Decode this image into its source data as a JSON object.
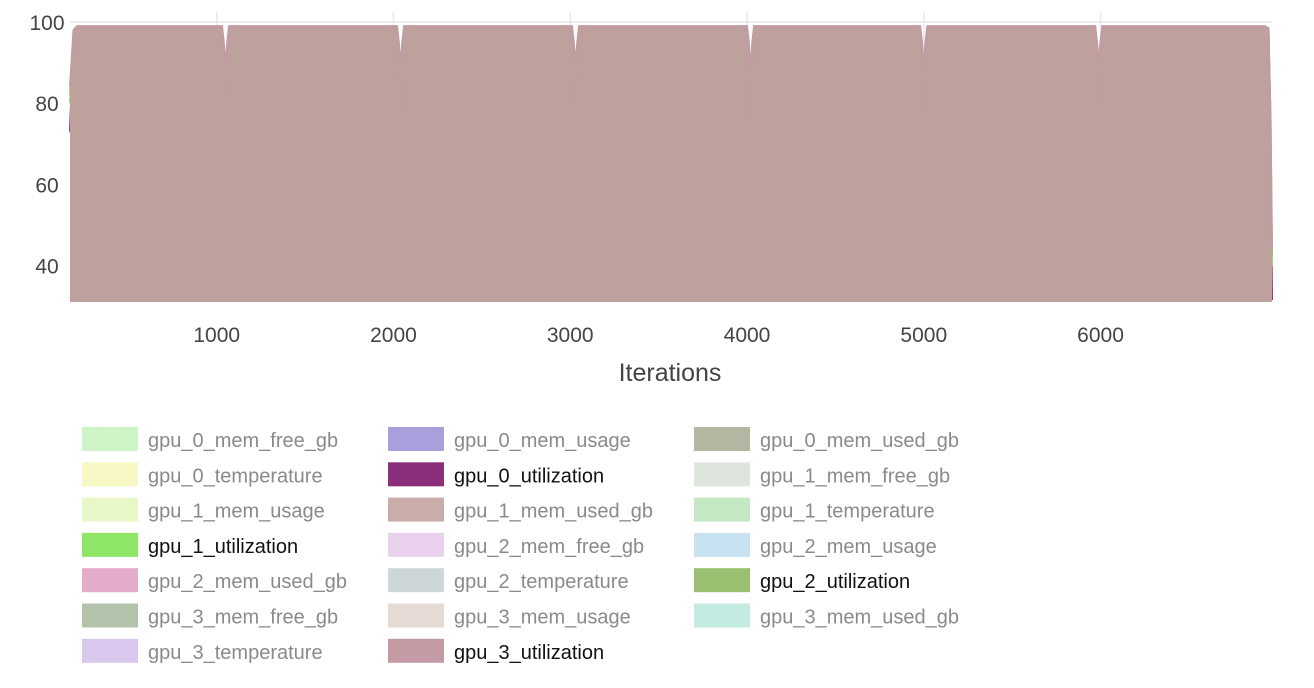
{
  "chart_data": {
    "type": "area",
    "title": "",
    "xlabel": "Iterations",
    "ylabel": "",
    "xlim": [
      170,
      6970
    ],
    "ylim": [
      31,
      100.5
    ],
    "x_ticks": [
      1000,
      2000,
      3000,
      4000,
      5000,
      6000
    ],
    "y_ticks": [
      40,
      60,
      80,
      100
    ],
    "grid": true,
    "legend_position": "bottom",
    "legend_columns": 3,
    "dip_iterations": [
      1050,
      2040,
      3030,
      4020,
      5000,
      5990
    ],
    "series": [
      {
        "name": "gpu_0_mem_free_gb",
        "color": "#bdf0b5",
        "visible": false
      },
      {
        "name": "gpu_0_mem_usage",
        "color": "#8a80d0",
        "visible": false
      },
      {
        "name": "gpu_0_mem_used_gb",
        "color": "#9a9e80",
        "visible": false
      },
      {
        "name": "gpu_0_temperature",
        "color": "#f5f5b0",
        "visible": false
      },
      {
        "name": "gpu_0_utilization",
        "color": "#8b2f7d",
        "visible": true,
        "x": [
          170,
          190,
          210,
          1030,
          1040,
          1050,
          1060,
          1070,
          2020,
          2030,
          2040,
          2050,
          2060,
          3010,
          3020,
          3030,
          3040,
          3050,
          4000,
          4010,
          4020,
          4030,
          4040,
          4980,
          4990,
          5000,
          5010,
          5020,
          5970,
          5980,
          5990,
          6000,
          6010,
          6930,
          6950,
          6962,
          6970
        ],
        "y": [
          73,
          97,
          98.5,
          98.5,
          92,
          81,
          92,
          98.5,
          98.5,
          90,
          78,
          90,
          98.5,
          98.5,
          91,
          79,
          91,
          98.5,
          98.5,
          88,
          75.5,
          88,
          98.5,
          98.5,
          90,
          78.5,
          90,
          98.5,
          98.5,
          91,
          79,
          91,
          98.5,
          98.5,
          98,
          65,
          31.5
        ]
      },
      {
        "name": "gpu_1_mem_free_gb",
        "color": "#d3dcd0",
        "visible": false
      },
      {
        "name": "gpu_1_mem_usage",
        "color": "#e0f5b5",
        "visible": false
      },
      {
        "name": "gpu_1_mem_used_gb",
        "color": "#b8908f",
        "visible": false
      },
      {
        "name": "gpu_1_temperature",
        "color": "#b0e0b0",
        "visible": false
      },
      {
        "name": "gpu_1_utilization",
        "color": "#8fe566",
        "visible": true,
        "x": [
          170,
          190,
          210,
          1030,
          1040,
          1050,
          1060,
          1070,
          2020,
          2030,
          2040,
          2050,
          2060,
          3010,
          3020,
          3030,
          3040,
          3050,
          4000,
          4010,
          4020,
          4030,
          4040,
          4980,
          4990,
          5000,
          5010,
          5020,
          5970,
          5980,
          5990,
          6000,
          6010,
          6930,
          6950,
          6962,
          6970
        ],
        "y": [
          80,
          97,
          98,
          98,
          93,
          84,
          93,
          98,
          98,
          93,
          85,
          93,
          98,
          98,
          94,
          86,
          94,
          98,
          98,
          93,
          85,
          93,
          98,
          98,
          93,
          84,
          93,
          98,
          98,
          94,
          88,
          94,
          98,
          98,
          97.5,
          72,
          40
        ]
      },
      {
        "name": "gpu_2_mem_free_gb",
        "color": "#e3c3ea",
        "visible": false
      },
      {
        "name": "gpu_2_mem_usage",
        "color": "#b5d8ee",
        "visible": false
      },
      {
        "name": "gpu_2_mem_used_gb",
        "color": "#da90b8",
        "visible": false
      },
      {
        "name": "gpu_2_temperature",
        "color": "#bccacd",
        "visible": false
      },
      {
        "name": "gpu_2_utilization",
        "color": "#98c070",
        "visible": true,
        "x": [
          170,
          190,
          210,
          1030,
          1040,
          1050,
          1060,
          1070,
          2020,
          2030,
          2040,
          2050,
          2060,
          3010,
          3020,
          3030,
          3040,
          3050,
          4000,
          4010,
          4020,
          4030,
          4040,
          4980,
          4990,
          5000,
          5010,
          5020,
          5970,
          5980,
          5990,
          6000,
          6010,
          6930,
          6950,
          6962,
          6970
        ],
        "y": [
          82,
          97.5,
          98.5,
          98.5,
          94,
          87,
          94,
          98.5,
          98.5,
          94,
          88,
          94,
          98.5,
          98.5,
          94.5,
          88,
          94.5,
          98.5,
          98.5,
          94,
          87,
          94,
          98.5,
          98.5,
          94,
          87,
          94,
          98.5,
          98.5,
          94.5,
          89,
          94.5,
          98.5,
          98.5,
          98,
          74,
          42
        ]
      },
      {
        "name": "gpu_3_mem_free_gb",
        "color": "#9aae8e",
        "visible": false
      },
      {
        "name": "gpu_3_mem_usage",
        "color": "#decfc6",
        "visible": false
      },
      {
        "name": "gpu_3_mem_used_gb",
        "color": "#b0e4d8",
        "visible": false
      },
      {
        "name": "gpu_3_temperature",
        "color": "#cdb5e8",
        "visible": false
      },
      {
        "name": "gpu_3_utilization",
        "color": "#c49aa5",
        "visible": true,
        "x": [
          170,
          190,
          210,
          1030,
          1040,
          1050,
          1060,
          1070,
          2020,
          2030,
          2040,
          2050,
          2060,
          3010,
          3020,
          3030,
          3040,
          3050,
          4000,
          4010,
          4020,
          4030,
          4040,
          4980,
          4990,
          5000,
          5010,
          5020,
          5970,
          5980,
          5990,
          6000,
          6010,
          6930,
          6950,
          6962,
          6970
        ],
        "y": [
          84,
          98,
          99,
          99,
          95,
          89,
          95,
          99,
          99,
          95,
          89,
          95,
          99,
          99,
          95,
          89,
          95,
          99,
          99,
          95,
          88,
          95,
          99,
          99,
          95,
          88,
          95,
          99,
          99,
          95,
          90,
          95,
          99,
          99,
          98.5,
          76,
          44
        ]
      }
    ]
  }
}
